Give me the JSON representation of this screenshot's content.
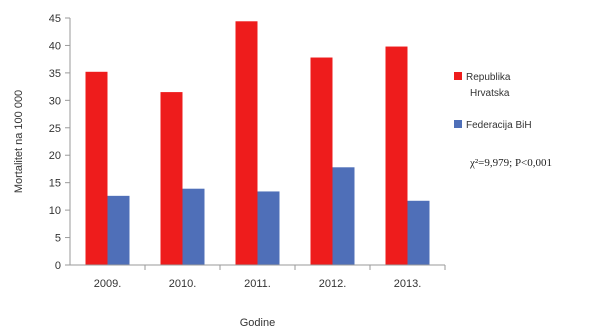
{
  "chart_data": {
    "type": "bar",
    "title": "",
    "xlabel": "Godine",
    "ylabel": "Mortalitet na 100 000",
    "categories": [
      "2009.",
      "2010.",
      "2011.",
      "2012.",
      "2013."
    ],
    "ylim": [
      0,
      45
    ],
    "yticks": [
      0,
      5,
      10,
      15,
      20,
      25,
      30,
      35,
      40,
      45
    ],
    "grid": false,
    "legend_position": "right",
    "series": [
      {
        "name": "Republika Hrvatska",
        "color": "#ee1c1c",
        "values": [
          35.2,
          31.5,
          44.4,
          37.8,
          39.8
        ]
      },
      {
        "name": "Federacija BiH",
        "color": "#4f6fb8",
        "values": [
          12.6,
          13.9,
          13.4,
          17.8,
          11.7
        ]
      }
    ],
    "annotation": "χ²=9,979; P<0,001"
  }
}
